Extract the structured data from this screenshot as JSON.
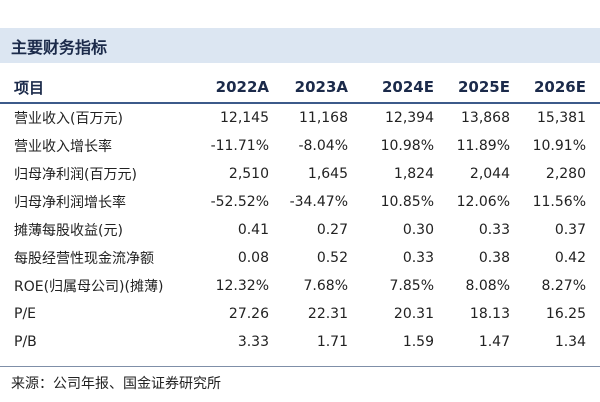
{
  "table": {
    "title": "主要财务指标",
    "headers": [
      "项目",
      "2022A",
      "2023A",
      "2024E",
      "2025E",
      "2026E"
    ],
    "rows": [
      [
        "营业收入(百万元)",
        "12,145",
        "11,168",
        "12,394",
        "13,868",
        "15,381"
      ],
      [
        "营业收入增长率",
        "-11.71%",
        "-8.04%",
        "10.98%",
        "11.89%",
        "10.91%"
      ],
      [
        "归母净利润(百万元)",
        "2,510",
        "1,645",
        "1,824",
        "2,044",
        "2,280"
      ],
      [
        "归母净利润增长率",
        "-52.52%",
        "-34.47%",
        "10.85%",
        "12.06%",
        "11.56%"
      ],
      [
        "摊薄每股收益(元)",
        "0.41",
        "0.27",
        "0.30",
        "0.33",
        "0.37"
      ],
      [
        "每股经营性现金流净额",
        "0.08",
        "0.52",
        "0.33",
        "0.38",
        "0.42"
      ],
      [
        "ROE(归属母公司)(摊薄)",
        "12.32%",
        "7.68%",
        "7.85%",
        "8.08%",
        "8.27%"
      ],
      [
        "P/E",
        "27.26",
        "22.31",
        "20.31",
        "18.13",
        "16.25"
      ],
      [
        "P/B",
        "3.33",
        "1.71",
        "1.59",
        "1.47",
        "1.34"
      ]
    ],
    "source": "来源：公司年报、国金证券研究所"
  }
}
